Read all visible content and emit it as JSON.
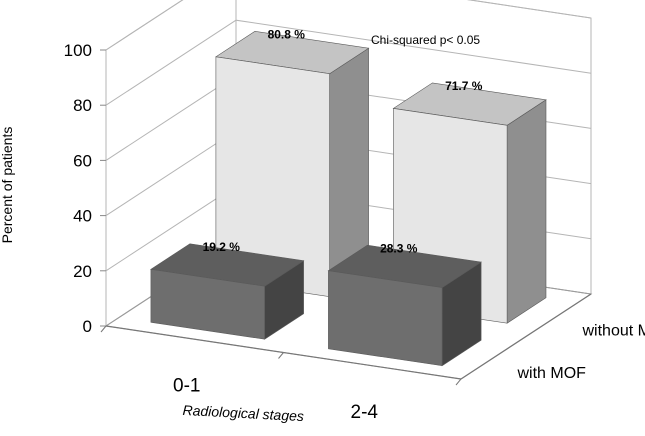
{
  "chart_data": {
    "type": "bar",
    "title": "",
    "annotation": "Chi-squared p< 0.05",
    "xlabel": "Radiological stages",
    "ylabel": "Percent of patients",
    "categories": [
      "0-1",
      "2-4"
    ],
    "ylim": [
      0,
      100
    ],
    "yticks": [
      "0",
      "20",
      "40",
      "60",
      "80",
      "100"
    ],
    "grid": true,
    "legend": "depth-axis labels at right",
    "series": [
      {
        "name": "with MOF",
        "values": [
          19.2,
          28.3
        ],
        "value_labels": [
          "19.2 %",
          "28.3 %"
        ],
        "color": "#6e6e6e"
      },
      {
        "name": "without MOF",
        "values": [
          80.8,
          71.7
        ],
        "value_labels": [
          "80.8 %",
          "71.7 %"
        ],
        "color": "#e6e6e6"
      }
    ]
  }
}
